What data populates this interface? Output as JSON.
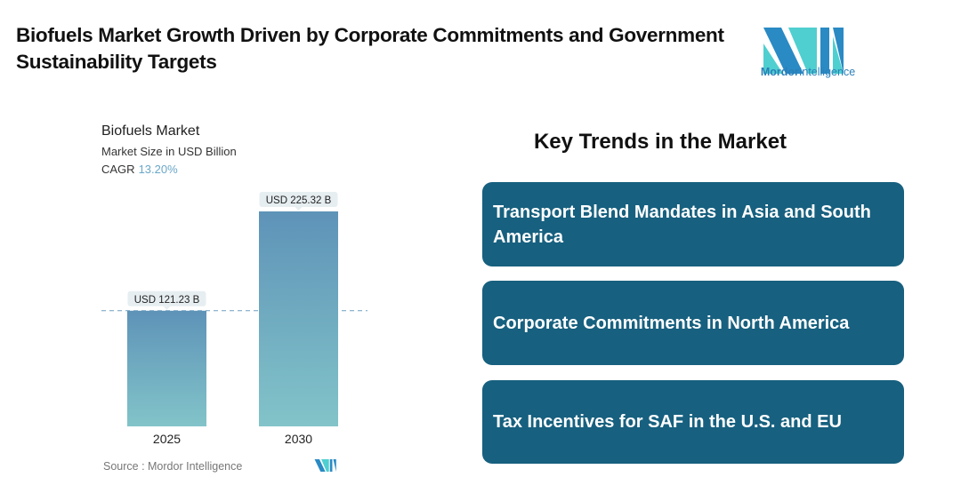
{
  "header": {
    "title": "Biofuels Market Growth Driven by Corporate Commitments and Government Sustainability Targets"
  },
  "logo": {
    "brand": "Mordor",
    "brand2": "Intelligence",
    "colors": [
      "#2a8ac4",
      "#4fcfd0"
    ]
  },
  "chart_data": {
    "type": "bar",
    "title": "Biofuels Market",
    "subtitle": "Market Size in USD Billion",
    "cagr_label": "CAGR",
    "cagr_value": "13.20%",
    "categories": [
      "2025",
      "2030"
    ],
    "values": [
      121.23,
      225.32
    ],
    "data_labels": [
      "USD 121.23 B",
      "USD 225.32 B"
    ],
    "ylim": [
      0,
      225.32
    ],
    "grid": false,
    "reference_line": "dashed at 2025 value",
    "bar_gradient": [
      "#5e93b8",
      "#82c4c9"
    ],
    "source": "Source :  Mordor Intelligence"
  },
  "trends": {
    "heading": "Key Trends in the Market",
    "items": [
      "Transport Blend Mandates in Asia and South America",
      "Corporate Commitments in North America",
      "Tax Incentives for SAF in the U.S. and EU"
    ],
    "card_color": "#17607f"
  }
}
